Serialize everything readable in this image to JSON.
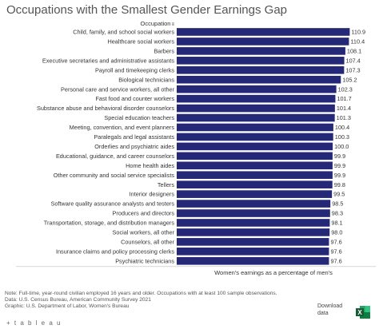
{
  "page": {
    "title": "Occupations with the Smallest Gender Earnings Gap",
    "column_header": "Occupation",
    "column_header_icon": "filter-icon",
    "notes": [
      "Note: Full-time, year-round civilian employed 16 years and older. Occupations with at least 100 sample observations.",
      "Data: U.S. Census Bureau, American Community Survey 2021",
      "Graphic: U.S. Department of Labor, Women's Bureau"
    ],
    "logo_text": "+ t a b l e a u",
    "download_label": "Download data",
    "download_icon": "excel-icon"
  },
  "chart_data": {
    "type": "bar",
    "orientation": "horizontal",
    "xlabel": "Women's earnings as a percentage of men's",
    "bar_color": "#252777",
    "categories": [
      "Child, family, and school social workers",
      "Healthcare social workers",
      "Barbers",
      "Executive secretaries and administrative assistants",
      "Payroll and timekeeping clerks",
      "Biological technicians",
      "Personal care and service workers, all other",
      "Fast food and counter workers",
      "Substance abuse and behavioral disorder counselors",
      "Special education teachers",
      "Meeting, convention, and event planners",
      "Paralegals and legal assistants",
      "Orderlies and psychiatric aides",
      "Educational, guidance, and career counselors",
      "Home health aides",
      "Other community and social service specialists",
      "Tellers",
      "Interior designers",
      "Software quality assurance analysts and testers",
      "Producers and directors",
      "Transportation, storage, and distribution managers",
      "Social workers, all other",
      "Counselors, all other",
      "Insurance claims and policy processing clerks",
      "Psychiatric technicians"
    ],
    "values": [
      110.9,
      110.4,
      108.1,
      107.4,
      107.3,
      105.2,
      102.3,
      101.7,
      101.4,
      101.3,
      100.4,
      100.3,
      100.0,
      99.9,
      99.9,
      99.9,
      99.8,
      99.5,
      98.5,
      98.3,
      98.1,
      98.0,
      97.6,
      97.6,
      97.6
    ],
    "value_labels": [
      "110.9",
      "110.4",
      "108.1",
      "107.4",
      "107.3",
      "105.2",
      "102.3",
      "101.7",
      "101.4",
      "101.3",
      "100.4",
      "100.3",
      "100.0",
      "99.9",
      "99.9",
      "99.9",
      "99.8",
      "99.5",
      "98.5",
      "98.3",
      "98.1",
      "98.0",
      "97.6",
      "97.6",
      "97.6"
    ],
    "xlim": [
      0,
      123
    ]
  }
}
